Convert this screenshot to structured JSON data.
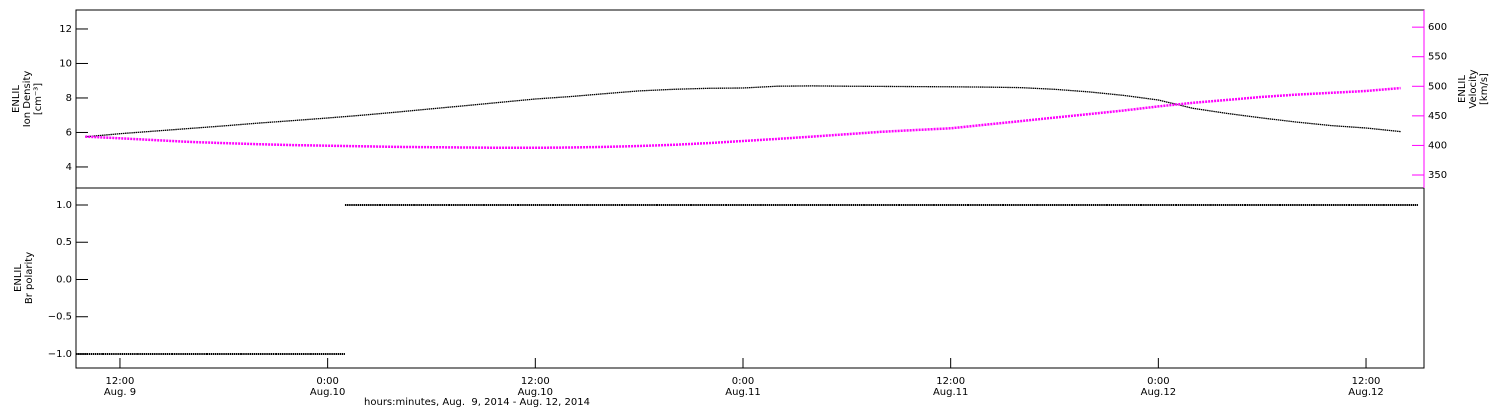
{
  "chart_data": [
    {
      "type": "line",
      "y_label": [
        "ENLIL",
        "Ion Density",
        "[cm⁻³]"
      ],
      "y2_label": [
        "ENLIL",
        "Velocity",
        "[km/s]"
      ],
      "y2_color": "#ff00ff",
      "x": [
        10,
        12,
        14,
        16,
        18,
        20,
        22,
        24,
        26,
        28,
        30,
        32,
        34,
        36,
        38,
        40,
        42,
        44,
        46,
        48,
        50,
        52,
        54,
        56,
        58,
        60,
        62,
        64,
        66,
        68,
        70,
        72,
        74,
        76,
        78,
        80,
        82,
        84,
        86
      ],
      "xlim": [
        9.46,
        87.35
      ],
      "ylim": [
        2.78,
        13.1
      ],
      "yticks": [
        4,
        6,
        8,
        10,
        12
      ],
      "y2lim": [
        328,
        629
      ],
      "y2ticks": [
        350,
        400,
        450,
        500,
        550,
        600
      ],
      "series": [
        {
          "color": "#000000",
          "values": [
            5.75,
            5.93,
            6.08,
            6.23,
            6.38,
            6.54,
            6.69,
            6.84,
            7.0,
            7.18,
            7.37,
            7.56,
            7.75,
            7.94,
            8.08,
            8.25,
            8.41,
            8.5,
            8.56,
            8.58,
            8.68,
            8.7,
            8.68,
            8.67,
            8.66,
            8.65,
            8.63,
            8.6,
            8.5,
            8.35,
            8.15,
            7.88,
            7.4,
            7.1,
            6.84,
            6.6,
            6.4,
            6.26,
            6.05
          ]
        },
        {
          "color": "#ff00ff",
          "axis": "y2",
          "values": [
            415,
            412,
            409,
            406,
            404,
            402,
            400.5,
            399.5,
            398.5,
            397.5,
            397,
            396.5,
            396,
            396,
            396.5,
            397.5,
            399,
            401,
            404,
            407.5,
            411,
            415,
            419,
            423,
            426,
            429,
            435,
            441,
            447,
            453,
            459,
            466,
            472,
            477,
            482,
            486,
            489,
            492,
            497
          ]
        }
      ]
    },
    {
      "type": "step",
      "y_label": [
        "ENLIL",
        "Br polarity"
      ],
      "color": "#000000",
      "x": [
        10,
        12,
        14,
        16,
        18,
        20,
        22,
        24,
        26,
        28,
        30,
        32,
        34,
        36,
        38,
        40,
        42,
        44,
        46,
        48,
        50,
        52,
        54,
        56,
        58,
        60,
        62,
        64,
        66,
        68,
        70,
        72,
        74,
        76,
        78,
        80,
        82,
        84,
        86
      ],
      "values": [
        -1,
        -1,
        -1,
        -1,
        -1,
        -1,
        -1,
        -1,
        1,
        1,
        1,
        1,
        1,
        1,
        1,
        1,
        1,
        1,
        1,
        1,
        1,
        1,
        1,
        1,
        1,
        1,
        1,
        1,
        1,
        1,
        1,
        1,
        1,
        1,
        1,
        1,
        1,
        1,
        1
      ],
      "xlim": [
        9.46,
        87.35
      ],
      "ylim": [
        -1.188,
        1.228
      ],
      "yticks": [
        {
          "value": -1,
          "label": "−1.0"
        },
        {
          "value": -0.5,
          "label": "−0.5"
        },
        {
          "value": 0,
          "label": "0.0"
        },
        {
          "value": 0.5,
          "label": "0.5"
        },
        {
          "value": 1,
          "label": "1.0"
        }
      ],
      "xticks": [
        {
          "value": 12,
          "label": "12:00"
        },
        {
          "value": 24,
          "label": "0:00"
        },
        {
          "value": 36,
          "label": "12:00"
        },
        {
          "value": 48,
          "label": "0:00"
        },
        {
          "value": 60,
          "label": "12:00"
        },
        {
          "value": 72,
          "label": "0:00"
        },
        {
          "value": 84,
          "label": "12:00"
        }
      ],
      "xtick_dates": [
        "Aug. 9",
        "Aug.10",
        "Aug.10",
        "Aug.11",
        "Aug.11",
        "Aug.12",
        "Aug.12"
      ],
      "x_title": "hours:minutes, Aug.  9, 2014 - Aug. 12, 2014"
    }
  ]
}
